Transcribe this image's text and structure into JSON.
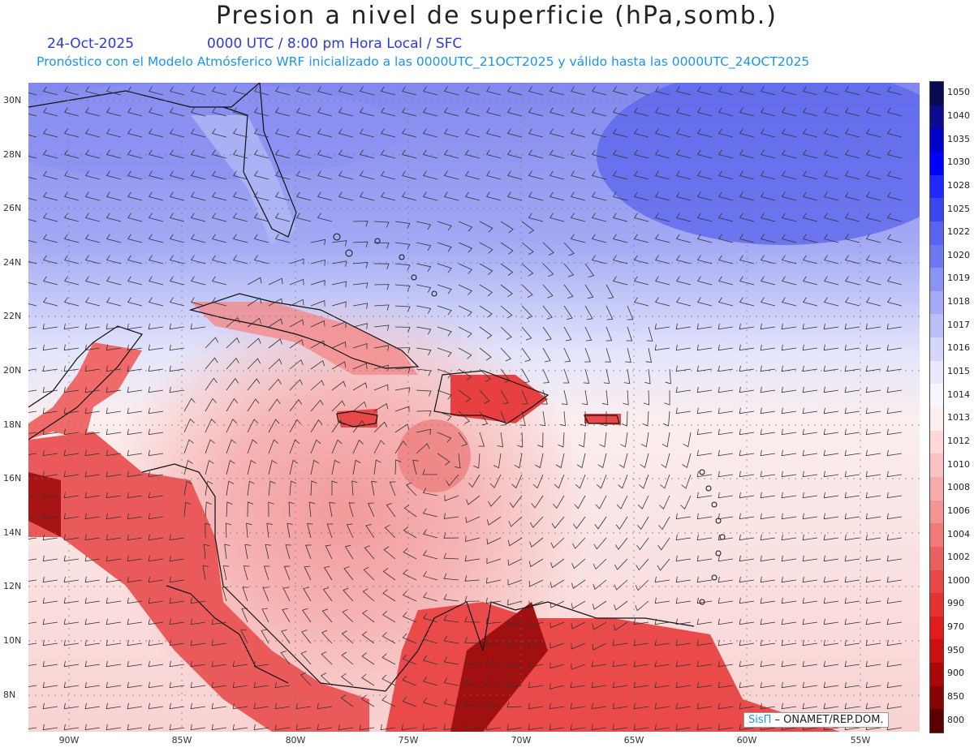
{
  "header": {
    "title": "Presion a nivel de superficie (hPa,somb.)",
    "date": "24-Oct-2025",
    "time": "0000 UTC / 8:00 pm Hora Local / SFC",
    "forecast": "Pronóstico con el Modelo Atmósferico WRF inicializado a las 0000UTC_21OCT2025 y válido hasta las  0000UTC_24OCT2025"
  },
  "axes": {
    "lat_labels": [
      "30N",
      "28N",
      "26N",
      "24N",
      "22N",
      "20N",
      "18N",
      "16N",
      "14N",
      "12N",
      "10N",
      "8N"
    ],
    "lon_labels": [
      "90W",
      "85W",
      "80W",
      "75W",
      "70W",
      "65W",
      "60W",
      "55W"
    ]
  },
  "colorbar": {
    "levels": [
      "1050",
      "1040",
      "1035",
      "1030",
      "1028",
      "1025",
      "1022",
      "1020",
      "1019",
      "1018",
      "1017",
      "1016",
      "1015",
      "1014",
      "1013",
      "1012",
      "1010",
      "1008",
      "1006",
      "1004",
      "1002",
      "1000",
      "990",
      "970",
      "950",
      "900",
      "850",
      "800"
    ],
    "colors": [
      "#0a0a50",
      "#0c0c8c",
      "#0000c8",
      "#0000ff",
      "#1e28ff",
      "#3a46f0",
      "#5a64f0",
      "#6e78f2",
      "#8a92f4",
      "#a4aaf6",
      "#bcc0f8",
      "#d4d6fa",
      "#e8e9fc",
      "#f6f6fe",
      "#ffeeee",
      "#fcd8d8",
      "#f9c2c2",
      "#f6acac",
      "#f29494",
      "#ee7a7a",
      "#ea6060",
      "#e64848",
      "#e23232",
      "#e01c1c",
      "#cc1010",
      "#a80808",
      "#860404",
      "#5a0000"
    ]
  },
  "credit": {
    "brand": "SisΠ",
    "org": " – ONAMET/REP.DOM."
  }
}
